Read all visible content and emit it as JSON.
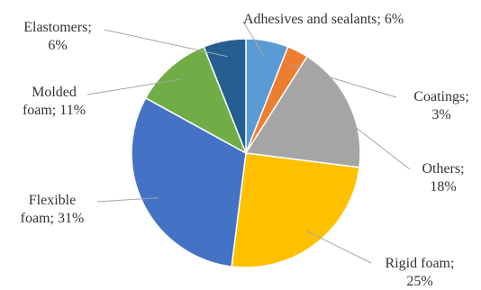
{
  "chart_data": {
    "type": "pie",
    "title": "",
    "legend": "none",
    "slices": [
      {
        "name": "Adhesives and sealants",
        "value": 6,
        "label_lines": [
          "Adhesives and sealants; 6%"
        ],
        "color": "#5b9bd5"
      },
      {
        "name": "Coatings",
        "value": 3,
        "label_lines": [
          "Coatings;",
          "3%"
        ],
        "color": "#ed7d31"
      },
      {
        "name": "Others",
        "value": 18,
        "label_lines": [
          "Others;",
          "18%"
        ],
        "color": "#a5a5a5"
      },
      {
        "name": "Rigid foam",
        "value": 25,
        "label_lines": [
          "Rigid foam;",
          "25%"
        ],
        "color": "#ffc000"
      },
      {
        "name": "Flexible foam",
        "value": 31,
        "label_lines": [
          "Flexible",
          "foam; 31%"
        ],
        "color": "#4472c4"
      },
      {
        "name": "Molded foam",
        "value": 11,
        "label_lines": [
          "Molded",
          "foam; 11%"
        ],
        "color": "#70ad47"
      },
      {
        "name": "Elastomers",
        "value": 6,
        "label_lines": [
          "Elastomers;",
          "6%"
        ],
        "color": "#255e91"
      }
    ]
  }
}
